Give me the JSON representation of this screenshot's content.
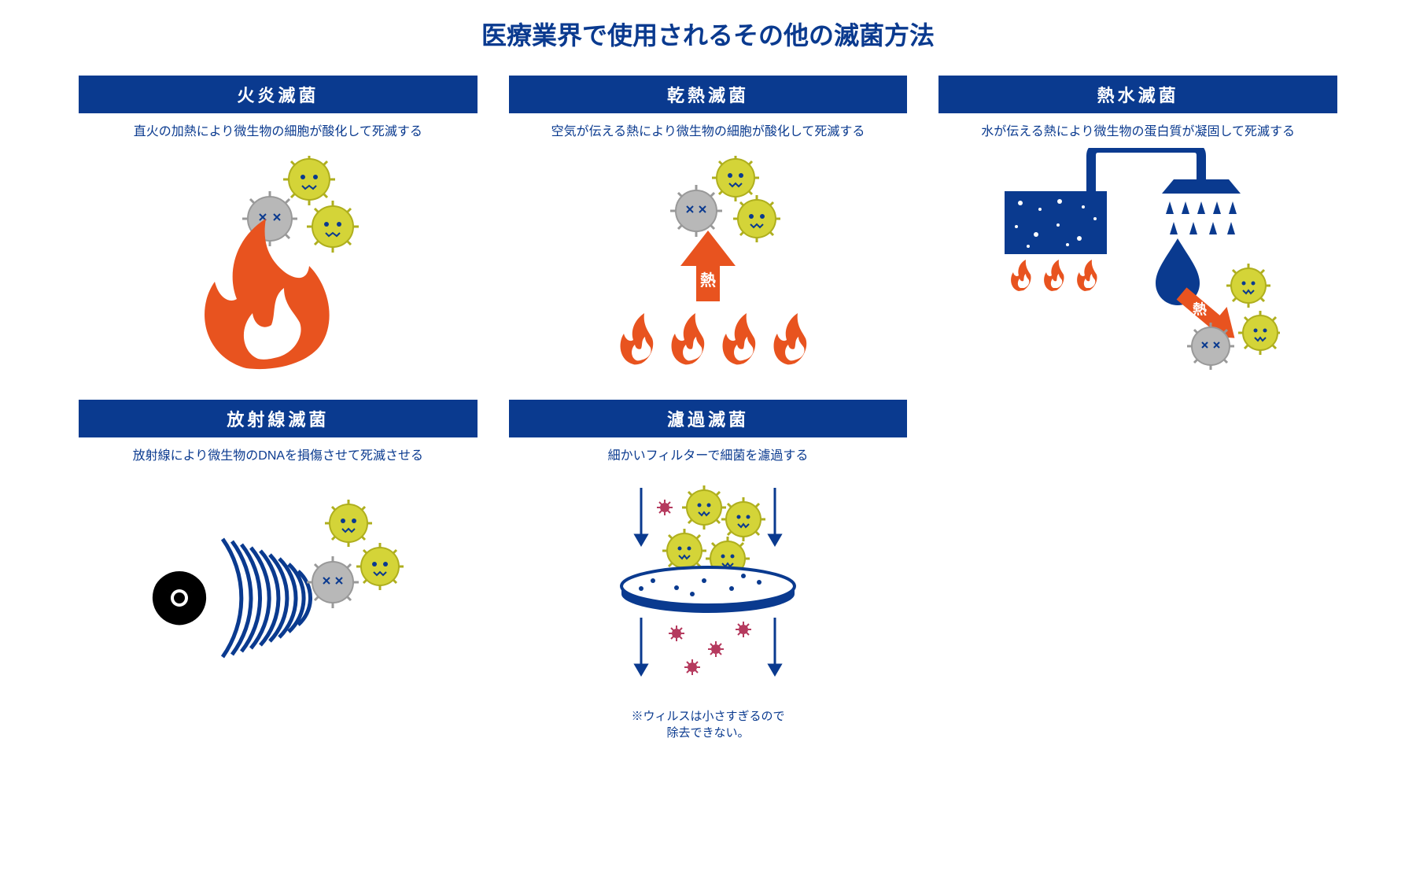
{
  "title": "医療業界で使用されるその他の滅菌方法",
  "colors": {
    "navy": "#0a3a8f",
    "flame": "#e8531f",
    "germ_body": "#d4d438",
    "germ_outline": "#afaf1e",
    "germ_dead_body": "#b8b8b8",
    "germ_dead_outline": "#999999",
    "germ_eye": "#0a3a8f",
    "virus": "#b53a5e",
    "black": "#000000",
    "white": "#ffffff"
  },
  "cards": [
    {
      "header": "火炎滅菌",
      "header_bg": "#0a3a8f",
      "desc": "直火の加熱により微生物の細胞が酸化して死滅する",
      "desc_color": "#0a3a8f",
      "type": "flame",
      "footnote": ""
    },
    {
      "header": "乾熱滅菌",
      "header_bg": "#0a3a8f",
      "desc": "空気が伝える熱により微生物の細胞が酸化して死滅する",
      "desc_color": "#0a3a8f",
      "type": "dry-heat",
      "arrow_label": "熱",
      "footnote": ""
    },
    {
      "header": "熱水滅菌",
      "header_bg": "#0a3a8f",
      "desc": "水が伝える熱により微生物の蛋白質が凝固して死滅する",
      "desc_color": "#0a3a8f",
      "type": "hot-water",
      "arrow_label": "熱",
      "footnote": ""
    },
    {
      "header": "放射線滅菌",
      "header_bg": "#0a3a8f",
      "desc": "放射線により微生物のDNAを損傷させて死滅させる",
      "desc_color": "#0a3a8f",
      "type": "radiation",
      "footnote": ""
    },
    {
      "header": "濾過滅菌",
      "header_bg": "#0a3a8f",
      "desc": "細かいフィルターで細菌を濾過する",
      "desc_color": "#0a3a8f",
      "type": "filter",
      "footnote": "※ウィルスは小さすぎるので\n除去できない。"
    }
  ]
}
